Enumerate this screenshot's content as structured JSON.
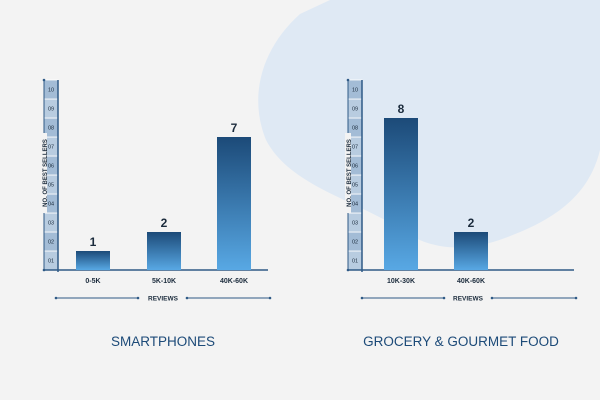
{
  "chart_data": [
    {
      "type": "bar",
      "title": "SMARTPHONES",
      "xlabel": "REVIEWS",
      "ylabel": "NO. OF BEST SELLERS",
      "categories": [
        "0-5K",
        "5K-10K",
        "40K-60K"
      ],
      "values": [
        1,
        2,
        7
      ],
      "ylim": [
        0,
        10
      ],
      "yticks": [
        "01",
        "02",
        "03",
        "04",
        "05",
        "06",
        "07",
        "08",
        "09",
        "10"
      ],
      "grid": false
    },
    {
      "type": "bar",
      "title": "GROCERY & GOURMET FOOD",
      "xlabel": "REVIEWS",
      "ylabel": "NO. OF BEST SELLERS",
      "categories": [
        "10K-30K",
        "40K-60K"
      ],
      "values": [
        8,
        2
      ],
      "ylim": [
        0,
        10
      ],
      "yticks": [
        "01",
        "02",
        "03",
        "04",
        "05",
        "06",
        "07",
        "08",
        "09",
        "10"
      ],
      "grid": false
    }
  ],
  "colors": {
    "background": "#f3f3f3",
    "blob": "#dfe9f4",
    "axis": "#2f5a86",
    "tick_box_light": "#b8cce0",
    "tick_box_dark": "#a3bcd6",
    "bar_top": "#1c4a78",
    "bar_bottom": "#58a8e4",
    "text": "#1b2b3c",
    "title": "#1c4a78"
  }
}
